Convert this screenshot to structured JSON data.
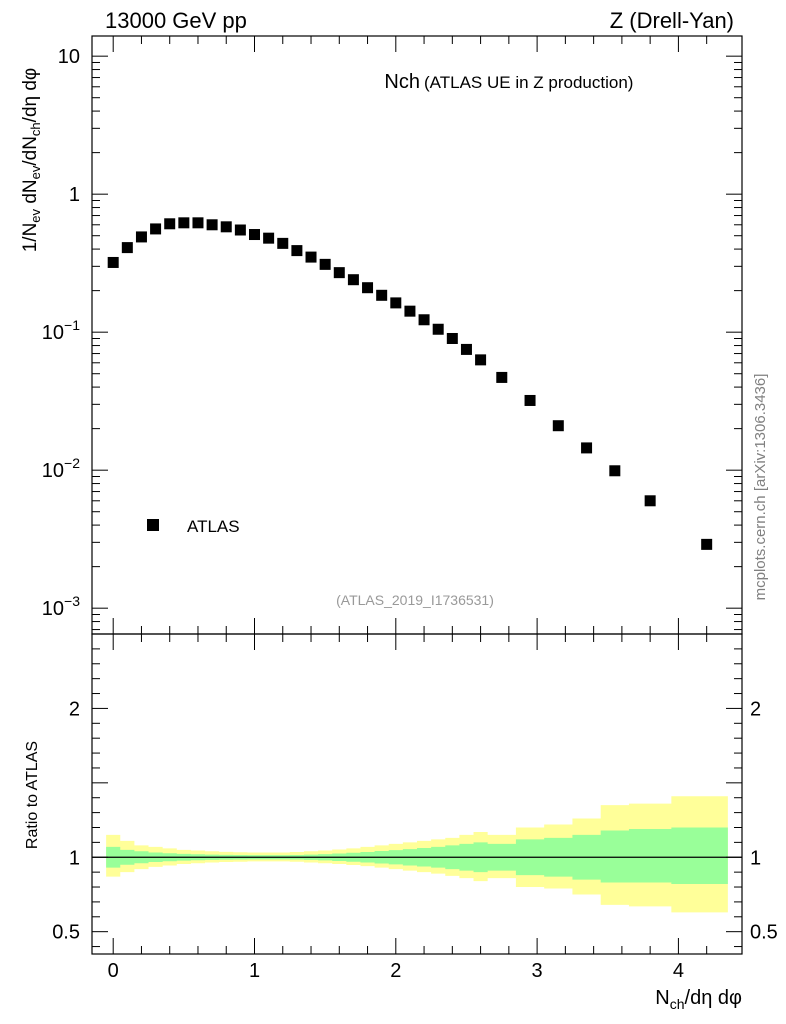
{
  "header": {
    "left": "13000 GeV pp",
    "right": "Z (Drell-Yan)"
  },
  "side_label": "mcplots.cern.ch [arXiv:1306.3436]",
  "chart_data": [
    {
      "type": "scatter",
      "panel": "main",
      "title": "Nch",
      "subtitle": "(ATLAS UE in Z production)",
      "watermark": "(ATLAS_2019_I1736531)",
      "ylabel": "1/N_ev dN_ev/dN_ch/dη dφ",
      "yscale": "log",
      "ylim": [
        0.00065,
        14
      ],
      "xlim": [
        -0.15,
        4.45
      ],
      "yticks": [
        {
          "value": 10,
          "label": "10"
        },
        {
          "value": 1,
          "label": "1"
        },
        {
          "value": 0.1,
          "label": "10",
          "exp": "−1"
        },
        {
          "value": 0.01,
          "label": "10",
          "exp": "−2"
        },
        {
          "value": 0.001,
          "label": "10",
          "exp": "−3"
        }
      ],
      "legend": {
        "position": "bottom-left",
        "entries": [
          "ATLAS"
        ]
      },
      "marker_color": "#000000",
      "series": [
        {
          "name": "ATLAS",
          "x": [
            0.0,
            0.1,
            0.2,
            0.3,
            0.4,
            0.5,
            0.6,
            0.7,
            0.8,
            0.9,
            1.0,
            1.1,
            1.2,
            1.3,
            1.4,
            1.5,
            1.6,
            1.7,
            1.8,
            1.9,
            2.0,
            2.1,
            2.2,
            2.3,
            2.4,
            2.5,
            2.6,
            2.75,
            2.95,
            3.15,
            3.35,
            3.55,
            3.8,
            4.2
          ],
          "y": [
            0.32,
            0.41,
            0.49,
            0.56,
            0.61,
            0.62,
            0.62,
            0.6,
            0.58,
            0.55,
            0.51,
            0.48,
            0.44,
            0.39,
            0.35,
            0.31,
            0.27,
            0.24,
            0.21,
            0.185,
            0.163,
            0.142,
            0.123,
            0.105,
            0.09,
            0.075,
            0.063,
            0.047,
            0.032,
            0.021,
            0.0145,
            0.0099,
            0.006,
            0.0029
          ]
        }
      ]
    },
    {
      "type": "area",
      "panel": "ratio",
      "ylabel": "Ratio to ATLAS",
      "xlabel": "N_ch/dη dφ",
      "ylim": [
        0.35,
        2.5
      ],
      "xlim": [
        -0.15,
        4.45
      ],
      "xticks": [
        0,
        1,
        2,
        3,
        4
      ],
      "yticks": [
        0.5,
        1,
        2
      ],
      "band_colors": {
        "outer": "#ffff99",
        "inner": "#99ff99"
      },
      "reference_line": 1,
      "bin_edges": [
        -0.05,
        0.05,
        0.15,
        0.25,
        0.35,
        0.45,
        0.55,
        0.65,
        0.75,
        0.85,
        0.95,
        1.05,
        1.15,
        1.25,
        1.35,
        1.45,
        1.55,
        1.65,
        1.75,
        1.85,
        1.95,
        2.05,
        2.15,
        2.25,
        2.35,
        2.45,
        2.55,
        2.65,
        2.85,
        3.05,
        3.25,
        3.45,
        3.65,
        3.95,
        4.35
      ],
      "outer_low": [
        0.87,
        0.9,
        0.92,
        0.935,
        0.945,
        0.955,
        0.96,
        0.965,
        0.968,
        0.97,
        0.972,
        0.972,
        0.972,
        0.97,
        0.965,
        0.96,
        0.955,
        0.948,
        0.94,
        0.93,
        0.92,
        0.91,
        0.9,
        0.89,
        0.875,
        0.86,
        0.84,
        0.86,
        0.8,
        0.79,
        0.75,
        0.68,
        0.67,
        0.63
      ],
      "outer_high": [
        1.15,
        1.11,
        1.08,
        1.07,
        1.06,
        1.05,
        1.045,
        1.04,
        1.036,
        1.034,
        1.032,
        1.032,
        1.032,
        1.035,
        1.04,
        1.045,
        1.052,
        1.06,
        1.07,
        1.08,
        1.09,
        1.1,
        1.11,
        1.12,
        1.13,
        1.15,
        1.17,
        1.15,
        1.2,
        1.22,
        1.26,
        1.35,
        1.36,
        1.41
      ],
      "inner_low": [
        0.93,
        0.95,
        0.96,
        0.968,
        0.973,
        0.977,
        0.98,
        0.982,
        0.984,
        0.985,
        0.986,
        0.986,
        0.986,
        0.985,
        0.982,
        0.979,
        0.975,
        0.97,
        0.965,
        0.958,
        0.952,
        0.945,
        0.938,
        0.93,
        0.92,
        0.91,
        0.9,
        0.91,
        0.88,
        0.87,
        0.85,
        0.83,
        0.83,
        0.82
      ],
      "inner_high": [
        1.07,
        1.05,
        1.04,
        1.032,
        1.027,
        1.023,
        1.02,
        1.018,
        1.016,
        1.015,
        1.014,
        1.014,
        1.014,
        1.015,
        1.018,
        1.021,
        1.025,
        1.03,
        1.035,
        1.042,
        1.048,
        1.055,
        1.062,
        1.07,
        1.08,
        1.09,
        1.1,
        1.09,
        1.12,
        1.13,
        1.15,
        1.18,
        1.19,
        1.2
      ]
    }
  ]
}
